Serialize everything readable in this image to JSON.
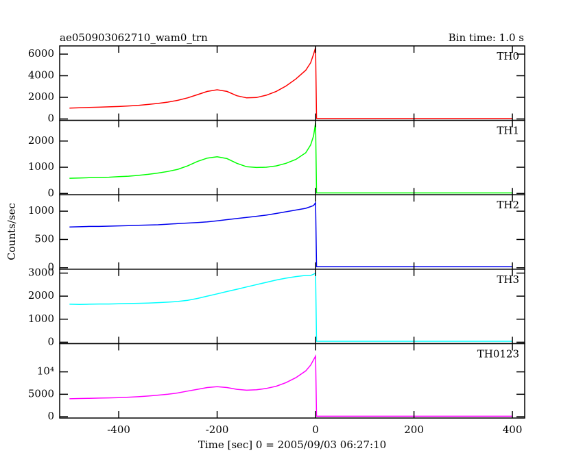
{
  "chart_data": {
    "type": "line",
    "title": "ae050903062710_wam0_trn",
    "subtitle": "Bin time: 1.0 s",
    "x_label": "Time [sec] 0 = 2005/09/03 06:27:10",
    "y_label": "Counts/sec",
    "xlim": [
      -520,
      425
    ],
    "xticks": [
      -400,
      -200,
      0,
      200,
      400
    ],
    "x": [
      -500,
      -480,
      -460,
      -440,
      -420,
      -400,
      -380,
      -360,
      -340,
      -320,
      -300,
      -280,
      -260,
      -240,
      -220,
      -200,
      -180,
      -160,
      -140,
      -120,
      -100,
      -80,
      -60,
      -40,
      -20,
      -10,
      -4,
      0,
      2,
      400
    ],
    "series": [
      {
        "name": "TH0",
        "color": "#ff0000",
        "ylim": [
          -130,
          6760
        ],
        "yticks": [
          0,
          2000,
          4000,
          6000
        ],
        "values": [
          1000,
          1030,
          1060,
          1090,
          1120,
          1150,
          1200,
          1260,
          1340,
          1440,
          1560,
          1720,
          1950,
          2250,
          2550,
          2700,
          2550,
          2150,
          1950,
          1980,
          2200,
          2550,
          3050,
          3700,
          4500,
          5200,
          6000,
          6600,
          40,
          40
        ]
      },
      {
        "name": "TH1",
        "color": "#00ff00",
        "ylim": [
          -50,
          2790
        ],
        "yticks": [
          0,
          1000,
          2000
        ],
        "values": [
          580,
          590,
          600,
          610,
          620,
          640,
          660,
          690,
          730,
          780,
          840,
          920,
          1050,
          1220,
          1350,
          1400,
          1330,
          1150,
          1020,
          990,
          1000,
          1050,
          1150,
          1300,
          1550,
          1850,
          2200,
          2700,
          20,
          20
        ]
      },
      {
        "name": "TH2",
        "color": "#0000ee",
        "ylim": [
          -25,
          1290
        ],
        "yticks": [
          0,
          500,
          1000
        ],
        "values": [
          720,
          725,
          730,
          730,
          735,
          740,
          745,
          750,
          755,
          760,
          770,
          780,
          790,
          800,
          810,
          830,
          850,
          870,
          890,
          910,
          930,
          960,
          990,
          1020,
          1050,
          1080,
          1100,
          1150,
          20,
          20
        ]
      },
      {
        "name": "TH3",
        "color": "#00ffff",
        "ylim": [
          -60,
          3170
        ],
        "yticks": [
          0,
          1000,
          2000,
          3000
        ],
        "values": [
          1650,
          1640,
          1650,
          1660,
          1660,
          1670,
          1680,
          1690,
          1700,
          1720,
          1740,
          1770,
          1820,
          1900,
          2000,
          2100,
          2200,
          2300,
          2400,
          2500,
          2600,
          2700,
          2780,
          2850,
          2900,
          2900,
          2950,
          3000,
          40,
          40
        ]
      },
      {
        "name": "TH0123",
        "color": "#ff00ff",
        "ylim": [
          -300,
          16300
        ],
        "yticks": [
          0,
          5000,
          {
            "value": 10000,
            "label": "10⁴"
          }
        ],
        "values": [
          4000,
          4050,
          4100,
          4150,
          4200,
          4250,
          4350,
          4450,
          4600,
          4800,
          5000,
          5300,
          5700,
          6100,
          6500,
          6700,
          6500,
          6100,
          5900,
          6000,
          6300,
          6800,
          7600,
          8700,
          10200,
          11500,
          12700,
          13500,
          100,
          100
        ]
      }
    ]
  }
}
